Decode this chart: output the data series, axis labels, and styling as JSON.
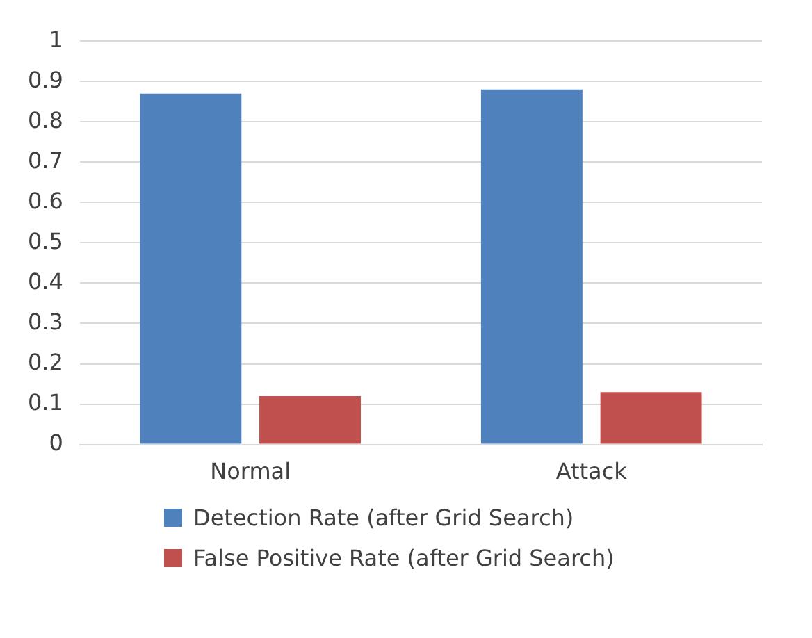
{
  "chart_data": {
    "type": "bar",
    "categories": [
      "Normal",
      "Attack"
    ],
    "series": [
      {
        "name": "Detection Rate (after Grid Search)",
        "color": "#4f81bd",
        "values": [
          0.87,
          0.88
        ]
      },
      {
        "name": "False Positive Rate (after Grid Search)",
        "color": "#c0504d",
        "values": [
          0.12,
          0.13
        ]
      }
    ],
    "ylim": [
      0,
      1
    ],
    "yticks": [
      0,
      0.1,
      0.2,
      0.3,
      0.4,
      0.5,
      0.6,
      0.7,
      0.8,
      0.9,
      1
    ],
    "grid": "y",
    "legend": "bottom"
  }
}
